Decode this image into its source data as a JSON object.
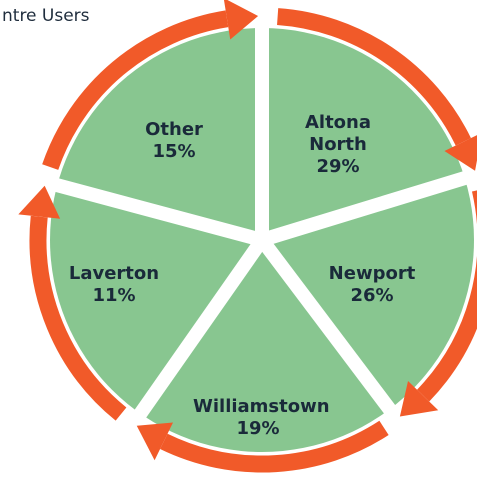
{
  "title": "ntre Users",
  "segments": [
    {
      "name": "Altona North",
      "value": "29%"
    },
    {
      "name": "Newport",
      "value": "26%"
    },
    {
      "name": "Williamstown",
      "value": "19%"
    },
    {
      "name": "Laverton",
      "value": "11%"
    },
    {
      "name": "Other",
      "value": "15%"
    }
  ]
}
